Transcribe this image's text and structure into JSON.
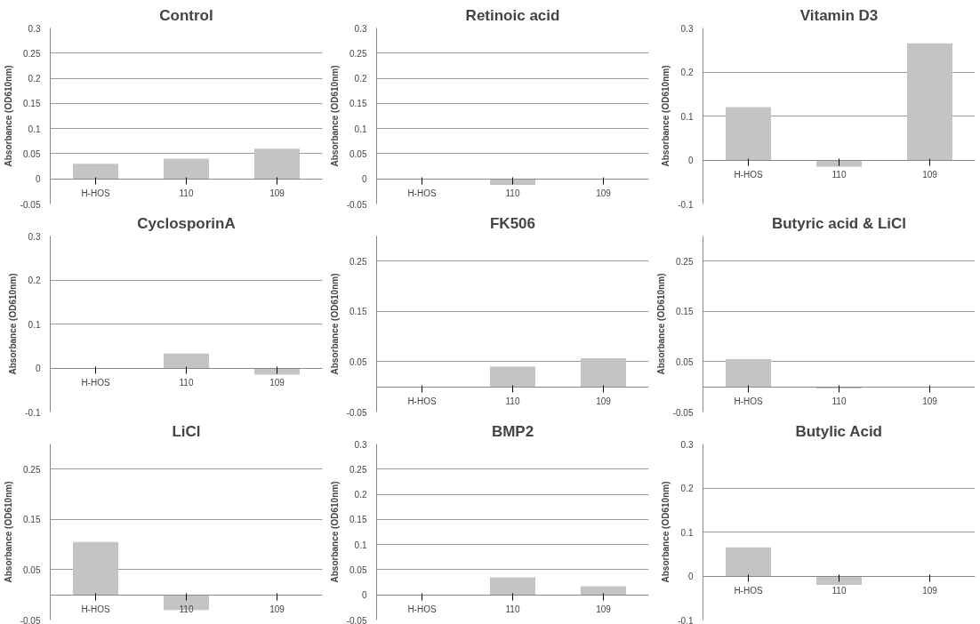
{
  "chart_data": [
    {
      "type": "bar",
      "title": "Control",
      "ylabel": "Absorbance (OD610nm)",
      "categories": [
        "H-HOS",
        "110",
        "109"
      ],
      "values": [
        0.03,
        0.04,
        0.06
      ],
      "color": "#c4c4c4",
      "ylim": [
        -0.05,
        0.3
      ],
      "yticks": [
        -0.05,
        0,
        0.05,
        0.1,
        0.15,
        0.2,
        0.25,
        0.3
      ],
      "grid": "y"
    },
    {
      "type": "bar",
      "title": "Retinoic acid",
      "ylabel": "Absorbance (OD610nm)",
      "categories": [
        "H-HOS",
        "110",
        "109"
      ],
      "values": [
        0,
        -0.012,
        0
      ],
      "color": "#c4c4c4",
      "ylim": [
        -0.05,
        0.3
      ],
      "yticks": [
        -0.05,
        0,
        0.05,
        0.1,
        0.15,
        0.2,
        0.25,
        0.3
      ],
      "grid": "y"
    },
    {
      "type": "bar",
      "title": "Vitamin D3",
      "ylabel": "Absorbance (OD610nm)",
      "categories": [
        "H-HOS",
        "110",
        "109"
      ],
      "values": [
        0.12,
        -0.015,
        0.265
      ],
      "color": "#c4c4c4",
      "ylim": [
        -0.1,
        0.3
      ],
      "yticks": [
        -0.1,
        0,
        0.1,
        0.2,
        0.3
      ],
      "grid": "y"
    },
    {
      "type": "bar",
      "title": "CyclosporinA",
      "ylabel": "Absorbance (OD610nm)",
      "categories": [
        "H-HOS",
        "110",
        "109"
      ],
      "values": [
        0,
        0.033,
        -0.015
      ],
      "color": "#c4c4c4",
      "ylim": [
        -0.1,
        0.3
      ],
      "yticks": [
        -0.1,
        0,
        0.1,
        0.2,
        0.3
      ],
      "grid": "y"
    },
    {
      "type": "bar",
      "title": "FK506",
      "ylabel": "Absorbance (OD610nm)",
      "categories": [
        "H-HOS",
        "110",
        "109"
      ],
      "values": [
        0,
        0.04,
        0.057
      ],
      "color": "#c4c4c4",
      "ylim": [
        -0.05,
        0.3
      ],
      "yticks": [
        -0.05,
        0.05,
        0.15,
        0.25
      ],
      "grid": "y"
    },
    {
      "type": "bar",
      "title": "Butyric acid & LiCl",
      "ylabel": "Absorbance (OD610nm)",
      "categories": [
        "H-HOS",
        "110",
        "109"
      ],
      "values": [
        0.055,
        -0.003,
        0
      ],
      "color": "#c4c4c4",
      "ylim": [
        -0.05,
        0.3
      ],
      "yticks": [
        -0.05,
        0.05,
        0.15,
        0.25
      ],
      "grid": "y"
    },
    {
      "type": "bar",
      "title": "LiCl",
      "ylabel": "Absorbance (OD610nm)",
      "categories": [
        "H-HOS",
        "110",
        "109"
      ],
      "values": [
        0.105,
        -0.03,
        0
      ],
      "color": "#c4c4c4",
      "ylim": [
        -0.05,
        0.3
      ],
      "yticks": [
        -0.05,
        0.05,
        0.15,
        0.25
      ],
      "grid": "y"
    },
    {
      "type": "bar",
      "title": "BMP2",
      "ylabel": "Absorbance (OD610nm)",
      "categories": [
        "H-HOS",
        "110",
        "109"
      ],
      "values": [
        0,
        0.035,
        0.017
      ],
      "color": "#c4c4c4",
      "ylim": [
        -0.05,
        0.3
      ],
      "yticks": [
        -0.05,
        0,
        0.05,
        0.1,
        0.15,
        0.2,
        0.25,
        0.3
      ],
      "grid": "y"
    },
    {
      "type": "bar",
      "title": "Butylic Acid",
      "ylabel": "Absorbance (OD610nm)",
      "categories": [
        "H-HOS",
        "110",
        "109"
      ],
      "values": [
        0.065,
        -0.02,
        0
      ],
      "color": "#c4c4c4",
      "ylim": [
        -0.1,
        0.3
      ],
      "yticks": [
        -0.1,
        0,
        0.1,
        0.2,
        0.3
      ],
      "grid": "y"
    }
  ]
}
